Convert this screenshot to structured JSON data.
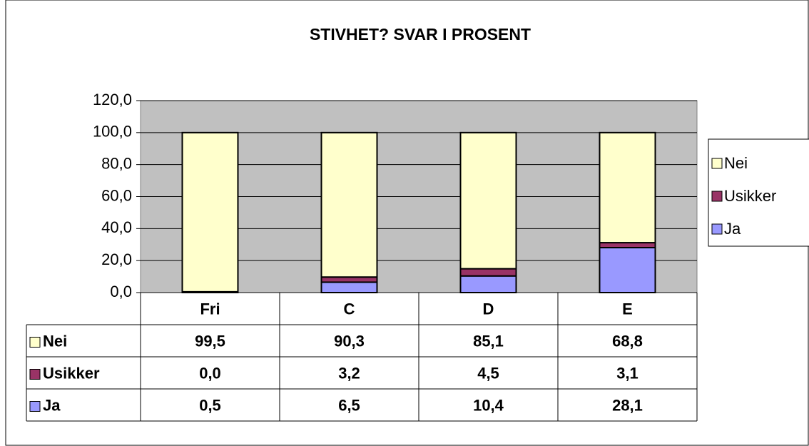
{
  "chart_data": {
    "type": "stacked_bar",
    "title": "STIVHET? SVAR I PROSENT",
    "categories": [
      "Fri",
      "C",
      "D",
      "E"
    ],
    "series": [
      {
        "name": "Ja",
        "color": "#9999ff",
        "values": [
          0.5,
          6.5,
          10.4,
          28.1
        ],
        "value_labels": [
          "0,5",
          "6,5",
          "10,4",
          "28,1"
        ]
      },
      {
        "name": "Usikker",
        "color": "#993366",
        "values": [
          0.0,
          3.2,
          4.5,
          3.1
        ],
        "value_labels": [
          "0,0",
          "3,2",
          "4,5",
          "3,1"
        ]
      },
      {
        "name": "Nei",
        "color": "#ffffcc",
        "values": [
          99.5,
          90.3,
          85.1,
          68.8
        ],
        "value_labels": [
          "99,5",
          "90,3",
          "85,1",
          "68,8"
        ]
      }
    ],
    "ylim": [
      0,
      120
    ],
    "yticks": [
      {
        "value": 0,
        "label": "0,0"
      },
      {
        "value": 20,
        "label": "20,0"
      },
      {
        "value": 40,
        "label": "40,0"
      },
      {
        "value": 60,
        "label": "60,0"
      },
      {
        "value": 80,
        "label": "80,0"
      },
      {
        "value": 100,
        "label": "100,0"
      },
      {
        "value": 120,
        "label": "120,0"
      }
    ],
    "grid": true,
    "legend": "right",
    "plot_background": "#c0c0c0"
  }
}
